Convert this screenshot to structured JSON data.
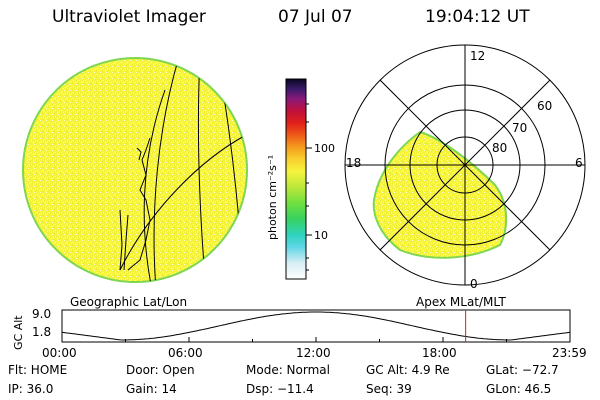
{
  "header": {
    "title": "Ultraviolet Imager",
    "date": "07 Jul 07",
    "time": "19:04:12 UT"
  },
  "colorbar": {
    "unit_label": "photon cm⁻²s⁻¹",
    "ticks": [
      "100",
      "10"
    ]
  },
  "polar_plot": {
    "labels": {
      "top": "12",
      "left": "18",
      "right": "6",
      "bottom": "0"
    },
    "rings": [
      "60",
      "70",
      "80"
    ]
  },
  "panel_labels": {
    "geographic": "Geographic Lat/Lon",
    "apex": "Apex MLat/MLT"
  },
  "alt_plot": {
    "ylabel": "GC Alt",
    "ymax": "9.0",
    "ymin": "1.8",
    "x_ticks": [
      "00:00",
      "06:00",
      "12:00",
      "18:00",
      "23:59"
    ],
    "current_time_hours": 19.07
  },
  "info": {
    "row1": {
      "flt": "Flt: HOME",
      "door": "Door: Open",
      "mode": "Mode: Normal",
      "gcalt": "GC Alt: 4.9 Re",
      "glat": "GLat: −72.7"
    },
    "row2": {
      "ip": "IP: 36.0",
      "gain": "Gain: 14",
      "dsp": "Dsp:  −11.4",
      "seq": "Seq: 39",
      "glon": "GLon:  46.5"
    }
  },
  "colors": {
    "image_fill": "#f5f23a",
    "image_edge": "#7fd650",
    "bar_marker": "#cc2222"
  }
}
